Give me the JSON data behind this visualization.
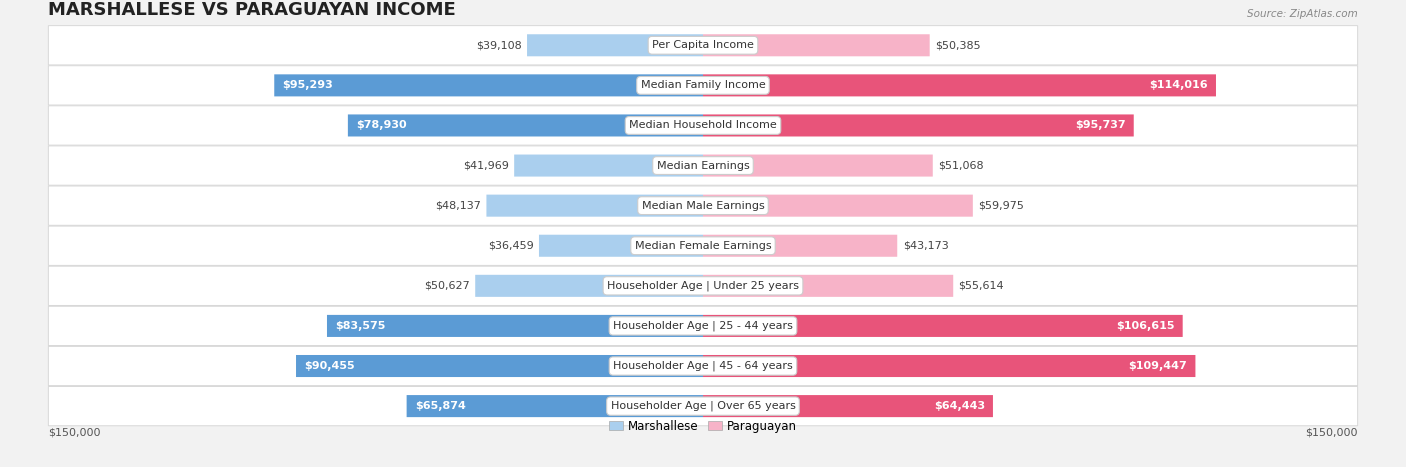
{
  "title": "MARSHALLESE VS PARAGUAYAN INCOME",
  "source": "Source: ZipAtlas.com",
  "categories": [
    "Per Capita Income",
    "Median Family Income",
    "Median Household Income",
    "Median Earnings",
    "Median Male Earnings",
    "Median Female Earnings",
    "Householder Age | Under 25 years",
    "Householder Age | 25 - 44 years",
    "Householder Age | 45 - 64 years",
    "Householder Age | Over 65 years"
  ],
  "marshallese": [
    39108,
    95293,
    78930,
    41969,
    48137,
    36459,
    50627,
    83575,
    90455,
    65874
  ],
  "paraguayan": [
    50385,
    114016,
    95737,
    51068,
    59975,
    43173,
    55614,
    106615,
    109447,
    64443
  ],
  "marshallese_labels": [
    "$39,108",
    "$95,293",
    "$78,930",
    "$41,969",
    "$48,137",
    "$36,459",
    "$50,627",
    "$83,575",
    "$90,455",
    "$65,874"
  ],
  "paraguayan_labels": [
    "$50,385",
    "$114,016",
    "$95,737",
    "$51,068",
    "$59,975",
    "$43,173",
    "$55,614",
    "$106,615",
    "$109,447",
    "$64,443"
  ],
  "marshallese_color_light": "#aacfee",
  "marshallese_color_dark": "#5b9bd5",
  "paraguayan_color_light": "#f7b3c8",
  "paraguayan_color_dark": "#e8547a",
  "max_value": 150000,
  "background_color": "#f2f2f2",
  "title_fontsize": 13,
  "label_fontsize": 8,
  "category_fontsize": 8,
  "m_dark_threshold": 60000,
  "p_dark_threshold": 60000
}
